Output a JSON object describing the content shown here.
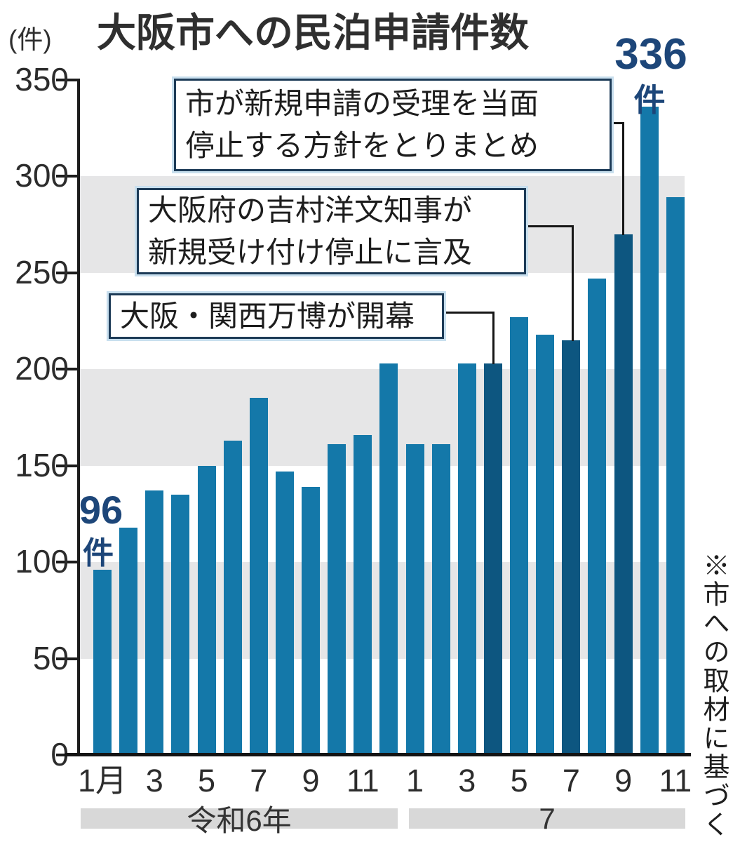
{
  "title": "大阪市への民泊申請件数",
  "y_axis_unit": "(件)",
  "source_note": "※市への取材に基づく",
  "chart_data": {
    "type": "bar",
    "title": "大阪市への民泊申請件数",
    "ylabel": "(件)",
    "ylim": [
      0,
      350
    ],
    "y_ticks": [
      0,
      50,
      100,
      150,
      200,
      250,
      300,
      350
    ],
    "grid": "alternating gray horizontal bands at 50-100, 150-200, 250-300",
    "legend_position": "none",
    "categories": [
      "令和6年1月",
      "令和6年2月",
      "令和6年3月",
      "令和6年4月",
      "令和6年5月",
      "令和6年6月",
      "令和6年7月",
      "令和6年8月",
      "令和6年9月",
      "令和6年10月",
      "令和6年11月",
      "令和6年12月",
      "令和7年1月",
      "令和7年2月",
      "令和7年3月",
      "令和7年4月",
      "令和7年5月",
      "令和7年6月",
      "令和7年7月",
      "令和7年8月",
      "令和7年9月",
      "令和7年10月",
      "令和7年11月"
    ],
    "values": [
      96,
      118,
      137,
      135,
      150,
      163,
      185,
      147,
      139,
      161,
      166,
      203,
      161,
      161,
      203,
      203,
      227,
      218,
      215,
      247,
      270,
      336,
      289
    ],
    "highlighted_indices": [
      15,
      18,
      20
    ],
    "bar_color": "#1478a9",
    "highlight_color": "#0d5680",
    "value_label_color": "#1d4679",
    "band_color": "#e6e6e7",
    "x_tick_labels": [
      "1月",
      "3",
      "5",
      "7",
      "9",
      "11",
      "1",
      "3",
      "5",
      "7",
      "9",
      "11"
    ],
    "year_groups": [
      {
        "label": "令和6年",
        "months": 12
      },
      {
        "label": "7",
        "months": 11
      }
    ],
    "value_labels": [
      {
        "value": "96",
        "unit": "件",
        "bar": "令和6年1月"
      },
      {
        "value": "336",
        "unit": "件",
        "bar": "令和7年10月"
      }
    ],
    "annotations": [
      {
        "line1": "市が新規申請の受理を当面",
        "line2": "停止する方針をとりまとめ",
        "target": "令和7年9月"
      },
      {
        "line1": "大阪府の吉村洋文知事が",
        "line2": "新規受け付け停止に言及",
        "target": "令和7年7月"
      },
      {
        "line1": "大阪・関西万博が開幕",
        "line2": "",
        "target": "令和7年4月"
      }
    ]
  }
}
